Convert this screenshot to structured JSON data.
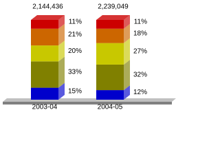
{
  "chart_data": {
    "type": "stacked-bar-3d",
    "categories": [
      "2003-04",
      "2004-05"
    ],
    "totals": [
      {
        "value": 2144436,
        "label": "2,144,436"
      },
      {
        "value": 2239049,
        "label": "2,239,049"
      }
    ],
    "series": [
      {
        "color": "#0000cc",
        "values": [
          15,
          12
        ],
        "value_labels": [
          "15%",
          "12%"
        ]
      },
      {
        "color": "#808000",
        "values": [
          33,
          32
        ],
        "value_labels": [
          "33%",
          "32%"
        ]
      },
      {
        "color": "#c8c800",
        "values": [
          20,
          27
        ],
        "value_labels": [
          "20%",
          "27%"
        ]
      },
      {
        "color": "#cc6600",
        "values": [
          21,
          18
        ],
        "value_labels": [
          "21%",
          "18%"
        ]
      },
      {
        "color": "#cc0000",
        "values": [
          11,
          11
        ],
        "value_labels": [
          "11%",
          "11%"
        ]
      }
    ]
  }
}
